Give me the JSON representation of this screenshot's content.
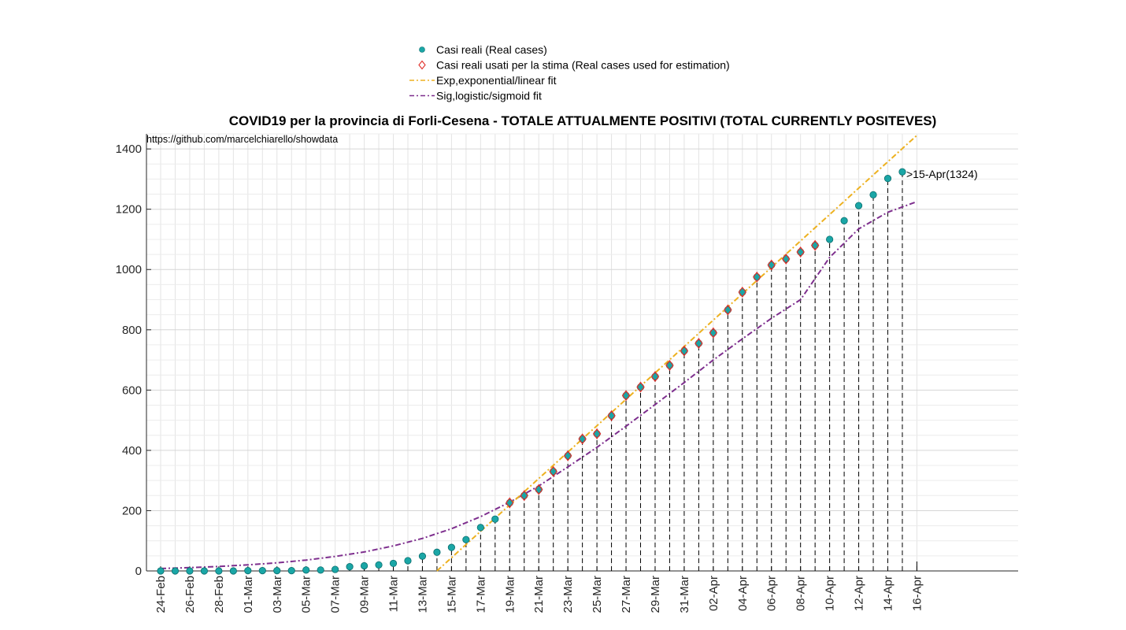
{
  "chart_data": {
    "type": "scatter",
    "title": "COVID19 per la provincia di Forli-Cesena - TOTALE ATTUALMENTE POSITIVI (TOTAL CURRENTLY POSITEVES)",
    "source_note": "https://github.com/marcelchiarello/showdata",
    "annotation": ">15-Apr(1324)",
    "xlabel": "",
    "ylabel": "",
    "ylim": [
      0,
      1450
    ],
    "yticks": [
      0,
      200,
      400,
      600,
      800,
      1000,
      1200,
      1400
    ],
    "x_start_date": "24-Feb",
    "x_tick_labels": [
      "24-Feb",
      "26-Feb",
      "28-Feb",
      "01-Mar",
      "03-Mar",
      "05-Mar",
      "07-Mar",
      "09-Mar",
      "11-Mar",
      "13-Mar",
      "15-Mar",
      "17-Mar",
      "19-Mar",
      "21-Mar",
      "23-Mar",
      "25-Mar",
      "27-Mar",
      "29-Mar",
      "31-Mar",
      "02-Apr",
      "04-Apr",
      "06-Apr",
      "08-Apr",
      "10-Apr",
      "12-Apr",
      "14-Apr",
      "16-Apr"
    ],
    "grid": true,
    "legend_position": "top-center",
    "legend": [
      {
        "label": "Casi reali (Real cases)",
        "marker": "circle",
        "color": "#1aa6a6"
      },
      {
        "label": "Casi reali usati per la stima (Real cases used for estimation)",
        "marker": "diamond",
        "color": "#e0302a"
      },
      {
        "label": "Exp,exponential/linear fit",
        "marker": "dashdot",
        "color": "#edb120"
      },
      {
        "label": "Sig,logistic/sigmoid fit",
        "marker": "dashdot",
        "color": "#7e2f8e"
      }
    ],
    "series": [
      {
        "name": "Casi reali (Real cases)",
        "x": [
          "24-Feb",
          "25-Feb",
          "26-Feb",
          "27-Feb",
          "28-Feb",
          "29-Feb",
          "01-Mar",
          "02-Mar",
          "03-Mar",
          "04-Mar",
          "05-Mar",
          "06-Mar",
          "07-Mar",
          "08-Mar",
          "09-Mar",
          "10-Mar",
          "11-Mar",
          "12-Mar",
          "13-Mar",
          "14-Mar",
          "15-Mar",
          "16-Mar",
          "17-Mar",
          "18-Mar",
          "19-Mar",
          "20-Mar",
          "21-Mar",
          "22-Mar",
          "23-Mar",
          "24-Mar",
          "25-Mar",
          "26-Mar",
          "27-Mar",
          "28-Mar",
          "29-Mar",
          "30-Mar",
          "31-Mar",
          "01-Apr",
          "02-Apr",
          "03-Apr",
          "04-Apr",
          "05-Apr",
          "06-Apr",
          "07-Apr",
          "08-Apr",
          "09-Apr",
          "10-Apr",
          "11-Apr",
          "12-Apr",
          "13-Apr",
          "14-Apr",
          "15-Apr"
        ],
        "values": [
          0,
          0,
          0,
          0,
          0,
          0,
          1,
          1,
          1,
          1,
          3,
          3,
          5,
          14,
          17,
          20,
          25,
          34,
          49,
          62,
          78,
          104,
          144,
          172,
          226,
          250,
          270,
          330,
          382,
          438,
          455,
          515,
          582,
          610,
          645,
          682,
          730,
          755,
          790,
          866,
          925,
          975,
          1015,
          1035,
          1058,
          1080,
          1100,
          1162,
          1212,
          1248,
          1302,
          1324
        ]
      },
      {
        "name": "Casi reali usati per la stima (Real cases used for estimation)",
        "x": [
          "19-Mar",
          "20-Mar",
          "21-Mar",
          "22-Mar",
          "23-Mar",
          "24-Mar",
          "25-Mar",
          "26-Mar",
          "27-Mar",
          "28-Mar",
          "29-Mar",
          "30-Mar",
          "31-Mar",
          "01-Apr",
          "02-Apr",
          "03-Apr",
          "04-Apr",
          "05-Apr",
          "06-Apr",
          "07-Apr",
          "08-Apr",
          "09-Apr"
        ],
        "values": [
          226,
          250,
          270,
          330,
          382,
          438,
          455,
          515,
          582,
          610,
          645,
          682,
          730,
          755,
          790,
          866,
          925,
          975,
          1015,
          1035,
          1058,
          1080
        ]
      },
      {
        "name": "Exp,exponential/linear fit",
        "x": [
          "14-Mar",
          "16-Apr"
        ],
        "values": [
          0,
          1445
        ]
      },
      {
        "name": "Sig,logistic/sigmoid fit",
        "x": [
          "24-Feb",
          "26-Feb",
          "28-Feb",
          "01-Mar",
          "03-Mar",
          "05-Mar",
          "07-Mar",
          "09-Mar",
          "11-Mar",
          "13-Mar",
          "15-Mar",
          "17-Mar",
          "19-Mar",
          "21-Mar",
          "23-Mar",
          "25-Mar",
          "27-Mar",
          "29-Mar",
          "31-Mar",
          "02-Apr",
          "04-Apr",
          "06-Apr",
          "08-Apr",
          "10-Apr",
          "12-Apr",
          "14-Apr",
          "16-Apr"
        ],
        "values": [
          8,
          11,
          15,
          20,
          27,
          36,
          48,
          63,
          83,
          108,
          140,
          180,
          228,
          282,
          345,
          410,
          480,
          552,
          625,
          700,
          770,
          838,
          900,
          1040,
          1135,
          1190,
          1225
        ]
      }
    ]
  }
}
